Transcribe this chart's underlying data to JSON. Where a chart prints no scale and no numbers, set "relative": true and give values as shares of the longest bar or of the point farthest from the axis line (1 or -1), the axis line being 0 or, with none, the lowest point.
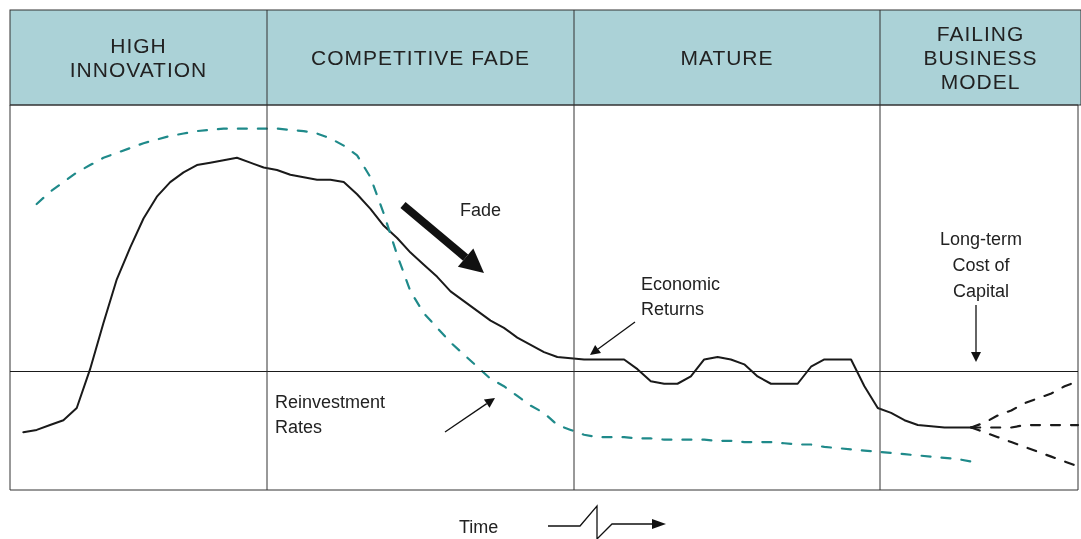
{
  "chart_data": {
    "type": "line",
    "relative": true,
    "marker": "none",
    "xlabel": "Time",
    "categories": [
      null,
      null,
      null,
      null,
      null,
      null,
      null,
      null,
      null,
      null,
      null,
      null,
      null,
      null,
      null,
      null,
      null,
      null,
      null,
      null,
      null,
      null,
      null,
      null,
      null,
      null,
      null,
      null,
      null,
      null,
      null,
      null,
      null,
      null,
      null,
      null,
      null,
      null,
      null,
      null,
      null,
      null,
      null,
      null,
      null,
      null,
      null,
      null,
      null,
      null,
      null,
      null,
      null,
      null,
      null,
      null,
      null,
      null,
      null,
      null,
      null,
      null,
      null,
      null,
      null,
      null,
      null,
      null,
      null,
      null,
      null,
      null,
      null,
      null,
      null,
      null,
      null,
      null,
      null,
      null,
      null
    ],
    "series": [
      {
        "color": "#1a1a1a",
        "line_style": "solid",
        "values": [
          null,
          -0.25,
          -0.24,
          -0.22,
          -0.2,
          -0.15,
          0.01,
          0.2,
          0.38,
          0.51,
          0.63,
          0.72,
          0.78,
          0.82,
          0.85,
          0.86,
          0.87,
          0.88,
          0.86,
          0.84,
          0.83,
          0.81,
          0.8,
          0.79,
          0.79,
          0.78,
          0.73,
          0.67,
          0.6,
          0.55,
          0.49,
          0.44,
          0.39,
          0.33,
          0.29,
          0.25,
          0.21,
          0.18,
          0.14,
          0.11,
          0.08,
          0.06,
          0.055,
          0.05,
          0.05,
          0.05,
          0.05,
          0.01,
          -0.04,
          -0.05,
          -0.05,
          -0.02,
          0.05,
          0.06,
          0.05,
          0.03,
          -0.02,
          -0.05,
          -0.05,
          -0.05,
          0.02,
          0.05,
          0.05,
          0.05,
          -0.06,
          -0.15,
          -0.17,
          -0.2,
          -0.22,
          -0.225,
          -0.23,
          -0.23,
          -0.23,
          null,
          null,
          null,
          null,
          null,
          null,
          null,
          null
        ]
      },
      {
        "color": "#1f8a8a",
        "line_style": "dashed",
        "values": [
          null,
          null,
          0.69,
          0.74,
          0.78,
          0.82,
          0.85,
          0.88,
          0.9,
          0.92,
          0.94,
          0.955,
          0.97,
          0.98,
          0.99,
          0.995,
          1,
          1,
          1,
          1,
          1,
          0.995,
          0.99,
          0.98,
          0.96,
          0.93,
          0.89,
          0.8,
          0.65,
          0.48,
          0.33,
          0.24,
          0.18,
          0.12,
          0.07,
          0.02,
          -0.03,
          -0.06,
          -0.1,
          -0.14,
          -0.17,
          -0.22,
          -0.24,
          -0.26,
          -0.27,
          -0.27,
          -0.27,
          -0.275,
          -0.275,
          -0.28,
          -0.28,
          -0.28,
          -0.28,
          -0.285,
          -0.285,
          -0.29,
          -0.29,
          -0.29,
          -0.295,
          -0.3,
          -0.3,
          -0.31,
          -0.315,
          -0.32,
          -0.325,
          -0.33,
          -0.335,
          -0.34,
          -0.345,
          -0.35,
          -0.355,
          -0.36,
          -0.37,
          null,
          null,
          null,
          null,
          null,
          null,
          null,
          null
        ]
      },
      {
        "color": "#1a1a1a",
        "line_style": "dashed",
        "values": [
          null,
          null,
          null,
          null,
          null,
          null,
          null,
          null,
          null,
          null,
          null,
          null,
          null,
          null,
          null,
          null,
          null,
          null,
          null,
          null,
          null,
          null,
          null,
          null,
          null,
          null,
          null,
          null,
          null,
          null,
          null,
          null,
          null,
          null,
          null,
          null,
          null,
          null,
          null,
          null,
          null,
          null,
          null,
          null,
          null,
          null,
          null,
          null,
          null,
          null,
          null,
          null,
          null,
          null,
          null,
          null,
          null,
          null,
          null,
          null,
          null,
          null,
          null,
          null,
          null,
          null,
          null,
          null,
          null,
          null,
          null,
          null,
          -0.23,
          -0.21,
          -0.18,
          -0.16,
          -0.13,
          -0.11,
          -0.09,
          -0.06,
          -0.04
        ]
      },
      {
        "color": "#1a1a1a",
        "line_style": "dashed",
        "values": [
          null,
          null,
          null,
          null,
          null,
          null,
          null,
          null,
          null,
          null,
          null,
          null,
          null,
          null,
          null,
          null,
          null,
          null,
          null,
          null,
          null,
          null,
          null,
          null,
          null,
          null,
          null,
          null,
          null,
          null,
          null,
          null,
          null,
          null,
          null,
          null,
          null,
          null,
          null,
          null,
          null,
          null,
          null,
          null,
          null,
          null,
          null,
          null,
          null,
          null,
          null,
          null,
          null,
          null,
          null,
          null,
          null,
          null,
          null,
          null,
          null,
          null,
          null,
          null,
          null,
          null,
          null,
          null,
          null,
          null,
          null,
          null,
          -0.23,
          -0.23,
          -0.23,
          -0.23,
          -0.22,
          -0.22,
          -0.22,
          -0.22,
          -0.22
        ]
      },
      {
        "color": "#1a1a1a",
        "line_style": "dashed",
        "values": [
          null,
          null,
          null,
          null,
          null,
          null,
          null,
          null,
          null,
          null,
          null,
          null,
          null,
          null,
          null,
          null,
          null,
          null,
          null,
          null,
          null,
          null,
          null,
          null,
          null,
          null,
          null,
          null,
          null,
          null,
          null,
          null,
          null,
          null,
          null,
          null,
          null,
          null,
          null,
          null,
          null,
          null,
          null,
          null,
          null,
          null,
          null,
          null,
          null,
          null,
          null,
          null,
          null,
          null,
          null,
          null,
          null,
          null,
          null,
          null,
          null,
          null,
          null,
          null,
          null,
          null,
          null,
          null,
          null,
          null,
          null,
          null,
          -0.23,
          -0.25,
          -0.27,
          -0.29,
          -0.31,
          -0.33,
          -0.35,
          -0.37,
          -0.39
        ]
      }
    ],
    "ref_lines": [
      {
        "axis": "y",
        "value": 0,
        "label": "Long-term Cost of Capital",
        "color": "#1a1a1a",
        "line_style": "solid"
      }
    ],
    "annotations": [
      "HIGH INNOVATION",
      "COMPETITIVE FADE",
      "MATURE",
      "FAILING BUSINESS MODEL",
      "Fade",
      "Economic Returns",
      "Reinvestment Rates"
    ]
  }
}
